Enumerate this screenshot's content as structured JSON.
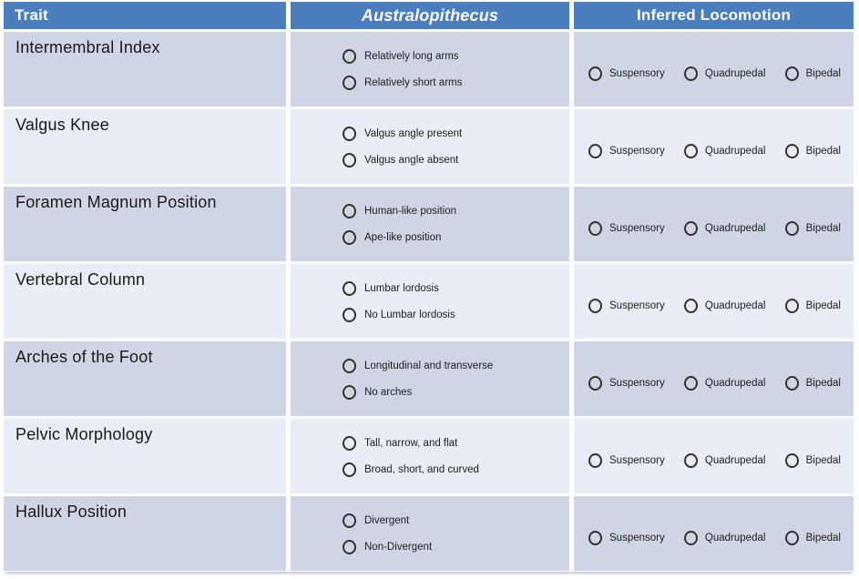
{
  "table": {
    "headers": [
      {
        "label": "Trait"
      },
      {
        "label": "Australopithecus"
      },
      {
        "label": "Inferred Locomotion"
      }
    ],
    "locomotion_options": [
      "Suspensory",
      "Quadrupedal",
      "Bipedal"
    ],
    "rows": [
      {
        "trait": "Intermembral Index",
        "options": [
          "Relatively long arms",
          "Relatively short arms"
        ]
      },
      {
        "trait": "Valgus Knee",
        "options": [
          "Valgus angle present",
          "Valgus angle absent"
        ]
      },
      {
        "trait": "Foramen Magnum Position",
        "options": [
          "Human-like position",
          "Ape-like position"
        ]
      },
      {
        "trait": "Vertebral Column",
        "options": [
          "Lumbar lordosis",
          "No Lumbar lordosis"
        ]
      },
      {
        "trait": "Arches of the Foot",
        "options": [
          "Longitudinal and transverse",
          "No arches"
        ]
      },
      {
        "trait": "Pelvic Morphology",
        "options": [
          "Tall, narrow, and flat",
          "Broad, short, and curved"
        ]
      },
      {
        "trait": "Hallux Position",
        "options": [
          "Divergent",
          "Non-Divergent"
        ]
      }
    ],
    "colors": {
      "header_bg": "#4a7ebd",
      "header_text": "#ffffff",
      "row_odd_bg": "#d0d5e6",
      "row_even_bg": "#e9edf5",
      "radio_border": "#36302a"
    }
  }
}
